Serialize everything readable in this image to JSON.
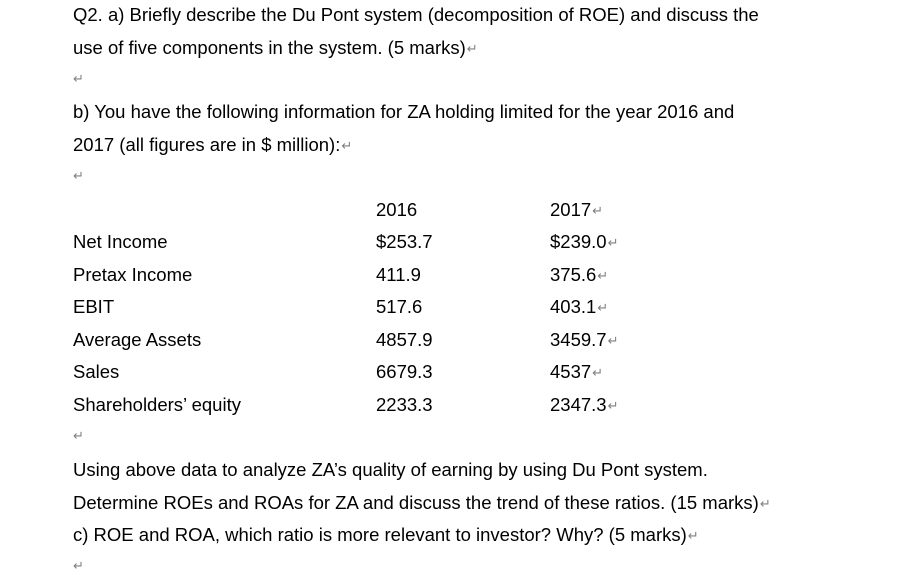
{
  "q2_intro": "Q2.  a) Briefly describe the Du Pont system (decomposition of ROE) and discuss the",
  "q2a_line2": "use of five components in the system. (5 marks)",
  "q2b_line1": "b) You have the following information for ZA holding limited for the year 2016 and",
  "q2b_line2": "2017 (all figures are in $ million):",
  "paragraph_mark": "↵",
  "table": {
    "header": {
      "label": "",
      "y2016": "2016",
      "y2017": "2017"
    },
    "rows": [
      {
        "label": "Net Income",
        "y2016": "$253.7",
        "y2017": "$239.0"
      },
      {
        "label": "Pretax Income",
        "y2016": "411.9",
        "y2017": "375.6"
      },
      {
        "label": "EBIT",
        "y2016": "517.6",
        "y2017": "403.1"
      },
      {
        "label": "Average Assets",
        "y2016": "4857.9",
        "y2017": "3459.7"
      },
      {
        "label": "Sales",
        "y2016": "6679.3",
        "y2017": "4537"
      },
      {
        "label": "Shareholders’ equity",
        "y2016": "2233.3",
        "y2017": "2347.3"
      }
    ]
  },
  "analysis_line1": "Using above data to analyze ZA’s quality of earning by using Du Pont system.",
  "analysis_line2": "Determine ROEs and ROAs for ZA and discuss the trend of these ratios. (15 marks)",
  "q2c_line": "c) ROE and ROA, which ratio is more relevant to investor? Why? (5 marks)"
}
